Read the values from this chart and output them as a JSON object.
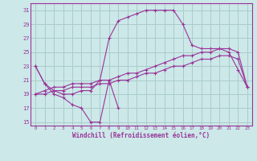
{
  "bg_color": "#cce8e8",
  "line_color": "#993399",
  "grid_color": "#aacccc",
  "xlim": [
    -0.5,
    23.5
  ],
  "ylim": [
    14.5,
    32
  ],
  "yticks": [
    15,
    17,
    19,
    21,
    23,
    25,
    27,
    29,
    31
  ],
  "xticks": [
    0,
    1,
    2,
    3,
    4,
    5,
    6,
    7,
    8,
    9,
    10,
    11,
    12,
    13,
    14,
    15,
    16,
    17,
    18,
    19,
    20,
    21,
    22,
    23
  ],
  "xlabel": "Windchill (Refroidissement éolien,°C)",
  "series": [
    {
      "x": [
        0,
        1,
        2,
        3,
        4,
        5,
        6,
        7,
        8,
        9
      ],
      "y": [
        23,
        20.5,
        19,
        18.5,
        17.5,
        17,
        15,
        15,
        21,
        17
      ]
    },
    {
      "x": [
        0,
        1,
        2,
        3,
        4,
        5,
        6,
        7,
        8,
        9,
        10,
        11,
        12,
        13,
        14,
        15,
        16,
        17,
        18,
        19,
        20,
        21,
        22,
        23
      ],
      "y": [
        23,
        20.5,
        19.5,
        19,
        19,
        19.5,
        19.5,
        21,
        27,
        29.5,
        30,
        30.5,
        31,
        31,
        31,
        31,
        29,
        26,
        25.5,
        25.5,
        25.5,
        25,
        22.5,
        20
      ]
    },
    {
      "x": [
        0,
        1,
        2,
        3,
        4,
        5,
        6,
        7,
        8,
        9,
        10,
        11,
        12,
        13,
        14,
        15,
        16,
        17,
        18,
        19,
        20,
        21,
        22,
        23
      ],
      "y": [
        19,
        19.5,
        20,
        20,
        20.5,
        20.5,
        20.5,
        21,
        21,
        21.5,
        22,
        22,
        22.5,
        23,
        23.5,
        24,
        24.5,
        24.5,
        25,
        25,
        25.5,
        25.5,
        25,
        20
      ]
    },
    {
      "x": [
        0,
        1,
        2,
        3,
        4,
        5,
        6,
        7,
        8,
        9,
        10,
        11,
        12,
        13,
        14,
        15,
        16,
        17,
        18,
        19,
        20,
        21,
        22,
        23
      ],
      "y": [
        19,
        19,
        19.5,
        19.5,
        20,
        20,
        20,
        20.5,
        20.5,
        21,
        21,
        21.5,
        22,
        22,
        22.5,
        23,
        23,
        23.5,
        24,
        24,
        24.5,
        24.5,
        24,
        20
      ]
    }
  ]
}
